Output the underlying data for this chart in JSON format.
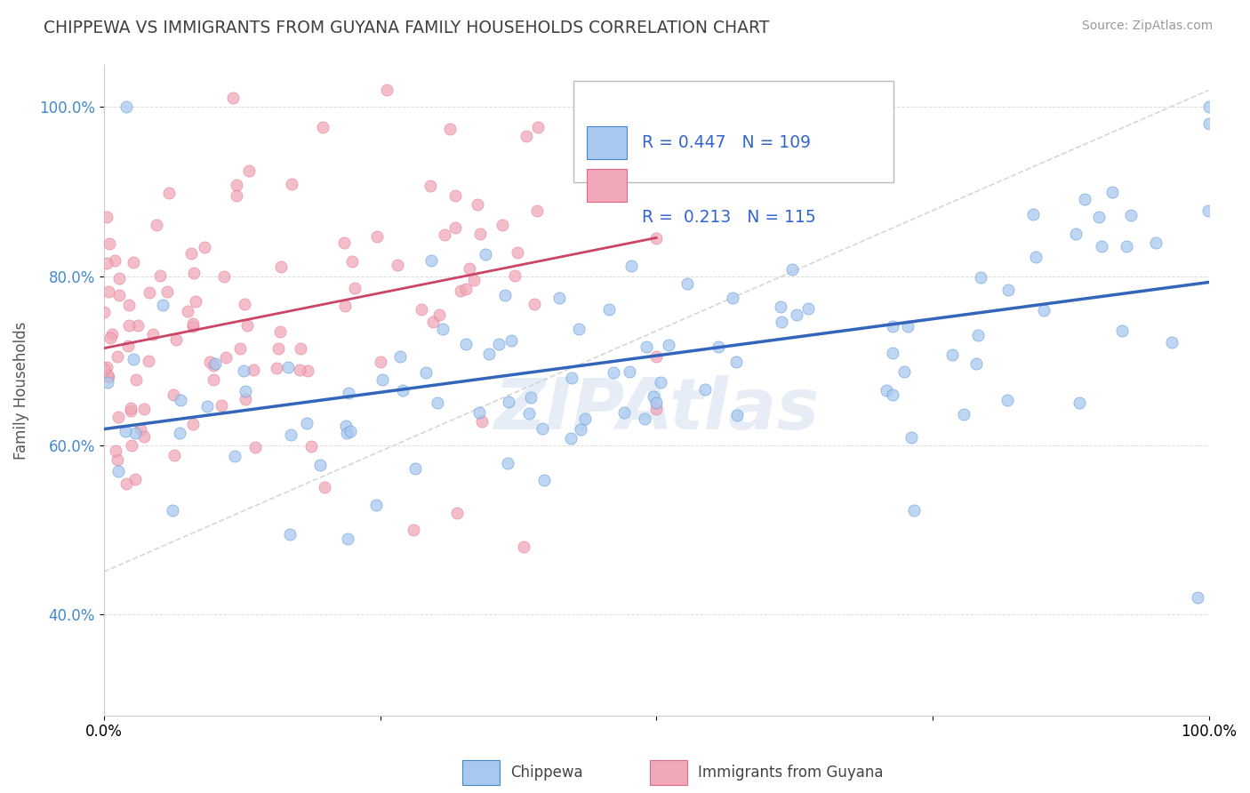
{
  "title": "CHIPPEWA VS IMMIGRANTS FROM GUYANA FAMILY HOUSEHOLDS CORRELATION CHART",
  "source": "Source: ZipAtlas.com",
  "ylabel": "Family Households",
  "x_min": 0.0,
  "x_max": 1.0,
  "y_min": 0.28,
  "y_max": 1.05,
  "x_ticks": [
    0.0,
    0.25,
    0.5,
    0.75,
    1.0
  ],
  "x_tick_labels": [
    "0.0%",
    "",
    "",
    "",
    "100.0%"
  ],
  "y_tick_labels": [
    "40.0%",
    "60.0%",
    "80.0%",
    "100.0%"
  ],
  "y_ticks": [
    0.4,
    0.6,
    0.8,
    1.0
  ],
  "legend_labels": [
    "Chippewa",
    "Immigrants from Guyana"
  ],
  "blue_R": "0.447",
  "blue_N": "109",
  "pink_R": "0.213",
  "pink_N": "115",
  "blue_color": "#a8c8f0",
  "pink_color": "#f0a8b8",
  "blue_edge_color": "#4488cc",
  "pink_edge_color": "#e06888",
  "blue_line_color": "#3366bb",
  "pink_line_color": "#cc4466",
  "ref_line_color": "#cccccc",
  "title_color": "#404040",
  "legend_R_color": "#3366cc",
  "watermark": "ZIPAtlas"
}
